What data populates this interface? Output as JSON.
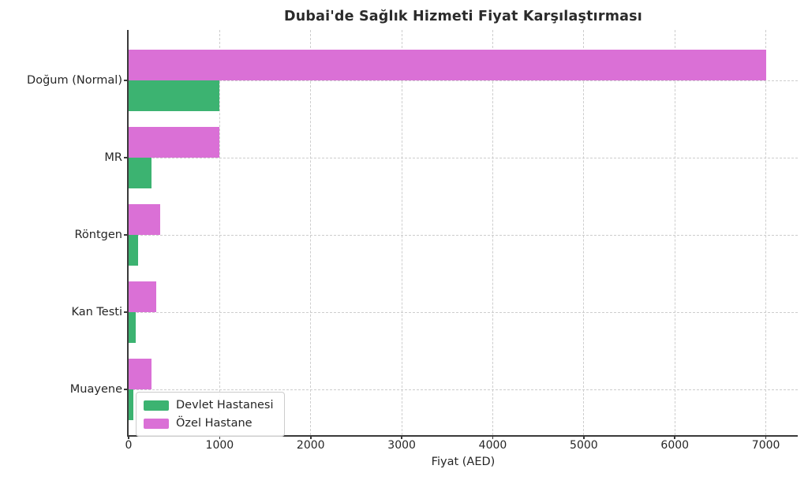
{
  "page": {
    "background": "#ffffff",
    "text_color": "#262626"
  },
  "chart_data": {
    "type": "bar",
    "orientation": "horizontal",
    "title": "Dubai'de Sağlık Hizmeti Fiyat Karşılaştırması",
    "xlabel": "Fiyat (AED)",
    "ylabel": "",
    "categories": [
      "Doğum (Normal)",
      "MR",
      "Röntgen",
      "Kan Testi",
      "Muayene"
    ],
    "series": [
      {
        "name": "Devlet Hastanesi",
        "color": "#3cb371",
        "values": [
          1000,
          250,
          100,
          80,
          50
        ]
      },
      {
        "name": "Özel Hastane",
        "color": "#da70d6",
        "values": [
          7000,
          1000,
          350,
          300,
          250
        ]
      }
    ],
    "xticks": [
      "0",
      "1000",
      "2000",
      "3000",
      "4000",
      "5000",
      "6000",
      "7000"
    ],
    "xtick_values": [
      0,
      1000,
      2000,
      3000,
      4000,
      5000,
      6000,
      7000
    ],
    "xlim": [
      0,
      7350
    ],
    "grid": "dashed-both-axes",
    "grid_color": "#cdcdcd",
    "spine_color": "#3a3a3a",
    "legend_position": "lower-left-inside"
  }
}
